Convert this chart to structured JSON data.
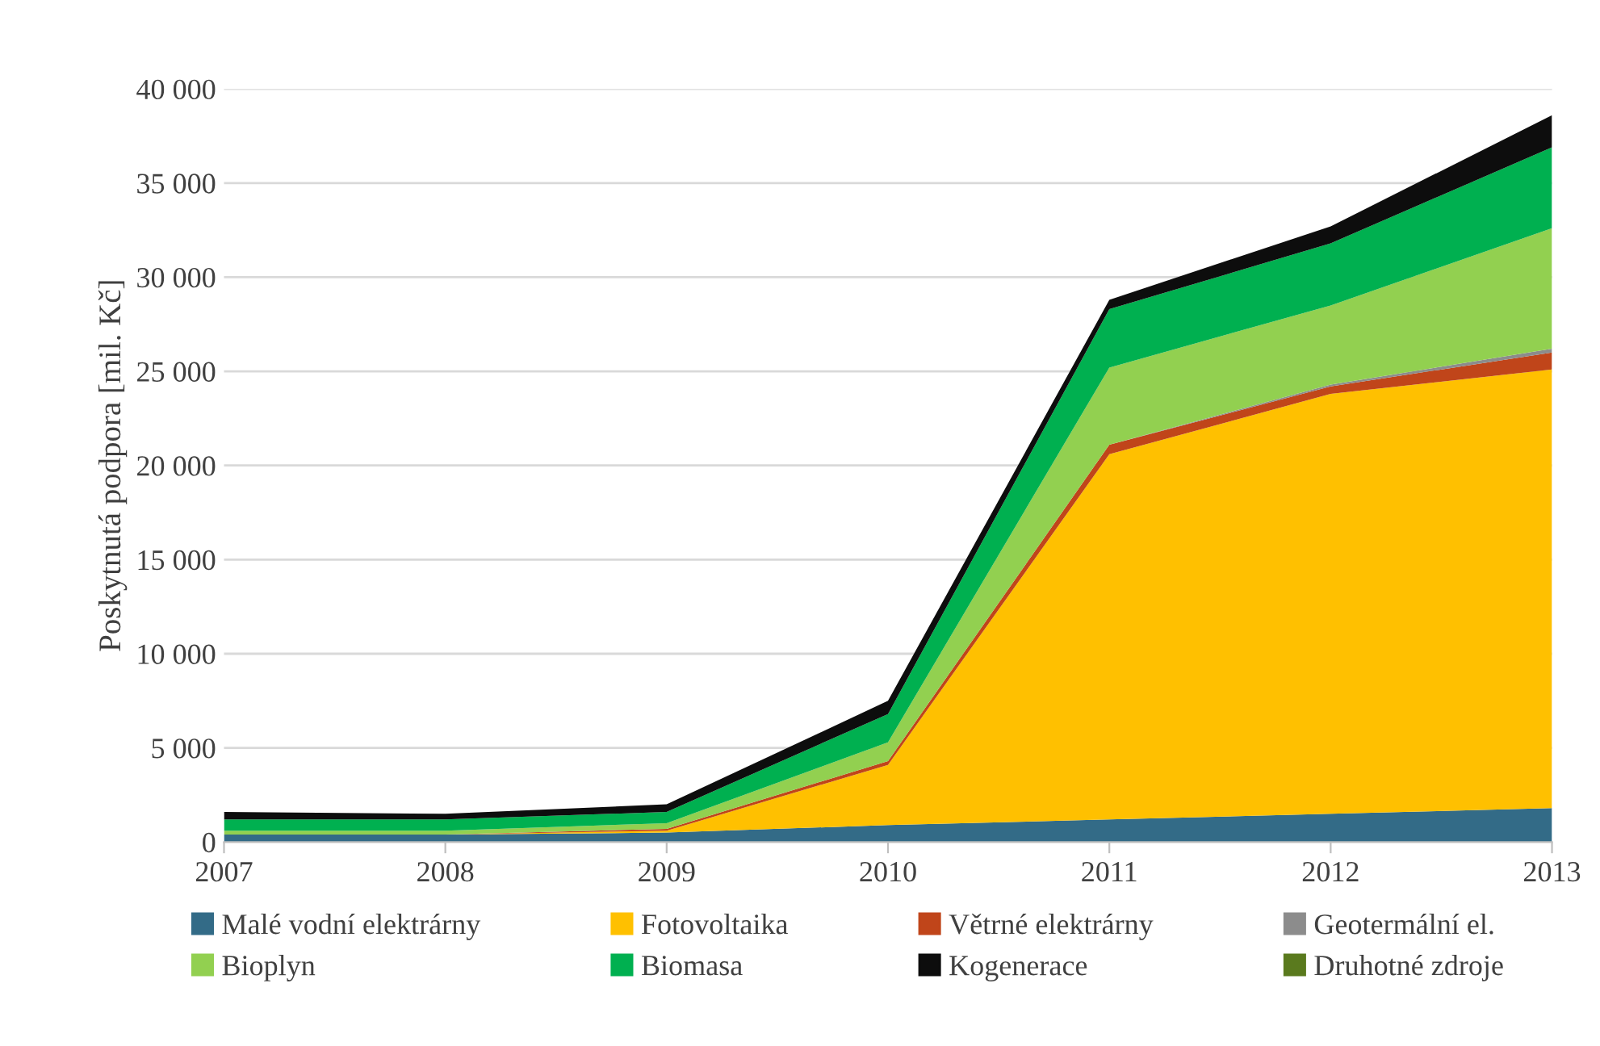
{
  "chart_data": {
    "type": "area",
    "stacked": true,
    "ylabel": "Poskytnutá podpora [mil. Kč]",
    "x": [
      2007,
      2008,
      2009,
      2010,
      2011,
      2012,
      2013
    ],
    "xlim": [
      2007,
      2013
    ],
    "xticks": [
      2007,
      2008,
      2009,
      2010,
      2011,
      2012,
      2013
    ],
    "ylim": [
      0,
      40000
    ],
    "yticks": [
      0,
      {
        "value": 5000,
        "label": "5 000"
      },
      {
        "value": 10000,
        "label": "10 000"
      },
      {
        "value": 15000,
        "label": "15 000"
      },
      {
        "value": 20000,
        "label": "20 000"
      },
      {
        "value": 25000,
        "label": "25 000"
      },
      {
        "value": 30000,
        "label": "30 000"
      },
      {
        "value": 35000,
        "label": "35 000"
      },
      {
        "value": 40000,
        "label": "40 000"
      }
    ],
    "grid": "y",
    "legend": "bottom",
    "series": [
      {
        "name": "Malé vodní elektrárny",
        "color": "#336b87",
        "values": [
          400,
          400,
          500,
          900,
          1200,
          1500,
          1800
        ]
      },
      {
        "name": "Fotovoltaika",
        "color": "#ffc000",
        "values": [
          0,
          0,
          100,
          3200,
          19400,
          22300,
          23300
        ]
      },
      {
        "name": "Větrné elektrárny",
        "color": "#c0451a",
        "values": [
          0,
          0,
          100,
          200,
          500,
          400,
          900
        ]
      },
      {
        "name": "Geotermální el.",
        "color": "#8c8c8c",
        "values": [
          0,
          0,
          0,
          0,
          0,
          100,
          200
        ]
      },
      {
        "name": "Bioplyn",
        "color": "#92d050",
        "values": [
          200,
          200,
          300,
          1000,
          4100,
          4200,
          6400
        ]
      },
      {
        "name": "Biomasa",
        "color": "#00b050",
        "values": [
          600,
          600,
          600,
          1500,
          3100,
          3300,
          4300
        ]
      },
      {
        "name": "Kogenerace",
        "color": "#0d0d0d",
        "values": [
          400,
          300,
          400,
          700,
          500,
          900,
          1700
        ]
      },
      {
        "name": "Druhotné zdroje",
        "color": "#5a7a1e",
        "values": [
          null,
          null,
          null,
          null,
          null,
          null,
          null
        ]
      }
    ]
  }
}
